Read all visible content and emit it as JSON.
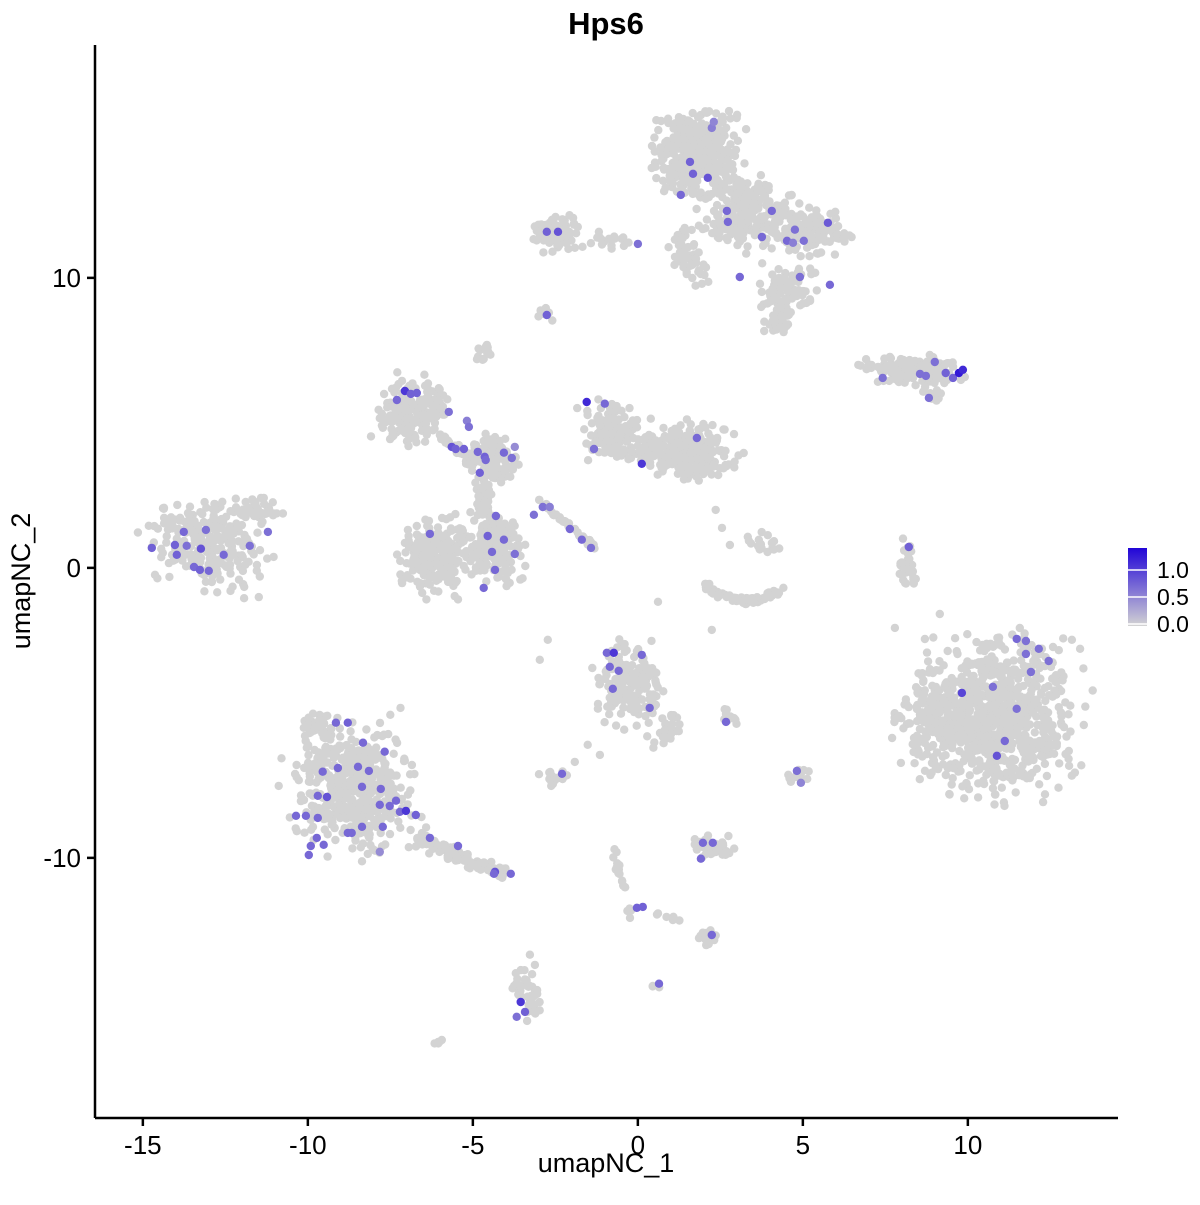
{
  "title": "Hps6",
  "axes": {
    "x": {
      "label": "umapNC_1",
      "ticks": [
        -15,
        -10,
        -5,
        0,
        5,
        10
      ],
      "domain": [
        -16.45,
        14.55
      ]
    },
    "y": {
      "label": "umapNC_2",
      "ticks": [
        -10,
        0,
        10
      ],
      "domain": [
        -18.97,
        18.03
      ]
    }
  },
  "legend": {
    "labels": [
      "1.0",
      "0.5",
      "0.0"
    ],
    "values": [
      1.0,
      0.5,
      0.0
    ],
    "max_expression": 1.45,
    "color_low": "#d3d3d3",
    "color_high": "#2105d7"
  },
  "colors": {
    "background": "#ffffff",
    "point_gray": "#d3d3d3",
    "axis": "#000000"
  },
  "chart_data": {
    "type": "scatter",
    "title": "Hps6",
    "xlabel": "umapNC_1",
    "ylabel": "umapNC_2",
    "xlim": [
      -16.45,
      14.55
    ],
    "ylim": [
      -18.97,
      18.03
    ],
    "grid": false,
    "legend_position": "right",
    "point_radius_px": 4.2,
    "clusters": [
      {
        "t": "blob",
        "cx": 1.88,
        "cy": 14.41,
        "rx": 1.36,
        "ry": 1.62,
        "n": 420
      },
      {
        "t": "blob",
        "cx": 3.33,
        "cy": 12.28,
        "rx": 1.45,
        "ry": 1.28,
        "n": 260,
        "rot": -20
      },
      {
        "t": "blob",
        "cx": 5.15,
        "cy": 11.62,
        "rx": 1.15,
        "ry": 0.9,
        "n": 130,
        "rot": -15
      },
      {
        "t": "blob",
        "cx": 1.58,
        "cy": 10.69,
        "rx": 0.48,
        "ry": 1.14,
        "n": 55,
        "rot": 15
      },
      {
        "t": "blob",
        "cx": 4.55,
        "cy": 9.52,
        "rx": 0.91,
        "ry": 0.88,
        "n": 90
      },
      {
        "t": "blob",
        "cx": 4.36,
        "cy": 8.48,
        "rx": 0.61,
        "ry": 0.41,
        "n": 25,
        "rot": 30
      },
      {
        "t": "blob",
        "cx": 6.27,
        "cy": 11.45,
        "rx": 0.45,
        "ry": 0.34,
        "n": 10
      },
      {
        "t": "blob",
        "cx": -2.45,
        "cy": 11.59,
        "rx": 0.82,
        "ry": 0.71,
        "n": 85
      },
      {
        "t": "blob",
        "cx": -0.85,
        "cy": 11.31,
        "rx": 0.67,
        "ry": 0.33,
        "n": 18
      },
      {
        "t": "blob",
        "cx": -2.82,
        "cy": 8.79,
        "rx": 0.3,
        "ry": 0.24,
        "n": 10,
        "rot": -35
      },
      {
        "t": "blob",
        "cx": -4.7,
        "cy": 7.45,
        "rx": 0.3,
        "ry": 0.38,
        "n": 13
      },
      {
        "t": "blob",
        "cx": -6.85,
        "cy": 5.38,
        "rx": 1.03,
        "ry": 1.21,
        "n": 170,
        "rot": -25
      },
      {
        "t": "line",
        "x1": -6.09,
        "y1": 4.62,
        "x2": -4.91,
        "y2": 3.66,
        "w": 0.14,
        "n": 45
      },
      {
        "t": "blob",
        "cx": -4.42,
        "cy": 3.76,
        "rx": 0.85,
        "ry": 0.88,
        "n": 130
      },
      {
        "t": "blob",
        "cx": -4.67,
        "cy": 2.38,
        "rx": 0.27,
        "ry": 0.81,
        "n": 35
      },
      {
        "t": "blob",
        "cx": -6.12,
        "cy": 0.41,
        "rx": 1.33,
        "ry": 1.48,
        "n": 230
      },
      {
        "t": "blob",
        "cx": -4.27,
        "cy": 0.66,
        "rx": 0.85,
        "ry": 1.34,
        "n": 190,
        "rot": 10
      },
      {
        "t": "line",
        "x1": -3.03,
        "y1": 2.38,
        "x2": -1.27,
        "y2": 0.66,
        "w": 0.09,
        "n": 40
      },
      {
        "t": "blob",
        "cx": -0.79,
        "cy": 4.69,
        "rx": 0.91,
        "ry": 1.14,
        "n": 120,
        "rot": 20
      },
      {
        "t": "blob",
        "cx": 0.36,
        "cy": 4.0,
        "rx": 0.61,
        "ry": 0.6,
        "n": 45
      },
      {
        "t": "blob",
        "cx": 1.64,
        "cy": 4.0,
        "rx": 1.33,
        "ry": 1.07,
        "n": 230
      },
      {
        "t": "arc",
        "cx": 3.24,
        "cy": -0.31,
        "rx": 1.21,
        "ry": 0.83,
        "a1": 195,
        "a2": 345,
        "w": 0.14,
        "n": 85
      },
      {
        "t": "blob",
        "cx": 3.7,
        "cy": 0.9,
        "rx": 0.76,
        "ry": 0.45,
        "n": 18
      },
      {
        "t": "blob",
        "cx": 8.3,
        "cy": 6.83,
        "rx": 1.67,
        "ry": 0.52,
        "n": 150,
        "rot": -5
      },
      {
        "t": "blob",
        "cx": 8.91,
        "cy": 5.93,
        "rx": 0.36,
        "ry": 0.28,
        "n": 10,
        "rot": -40
      },
      {
        "t": "blob",
        "cx": -12.97,
        "cy": 0.93,
        "rx": 1.82,
        "ry": 1.62,
        "n": 260,
        "rot": -10
      },
      {
        "t": "blob",
        "cx": -11.39,
        "cy": 2.0,
        "rx": 0.67,
        "ry": 0.62,
        "n": 35
      },
      {
        "t": "blob",
        "cx": 8.18,
        "cy": 0.21,
        "rx": 0.33,
        "ry": 1.03,
        "n": 32,
        "rot": 8
      },
      {
        "t": "blob",
        "cx": 10.97,
        "cy": -5.14,
        "rx": 2.42,
        "ry": 2.79,
        "n": 850
      },
      {
        "t": "blob",
        "cx": 8.79,
        "cy": -5.1,
        "rx": 1.15,
        "ry": 2.0,
        "n": 120
      },
      {
        "t": "blob",
        "cx": -0.24,
        "cy": -4.07,
        "rx": 1.15,
        "ry": 1.48,
        "n": 170
      },
      {
        "t": "blob",
        "cx": 0.91,
        "cy": -5.69,
        "rx": 0.42,
        "ry": 0.62,
        "n": 25,
        "rot": -30
      },
      {
        "t": "blob",
        "cx": 2.76,
        "cy": -5.14,
        "rx": 0.36,
        "ry": 0.31,
        "n": 12
      },
      {
        "t": "blob",
        "cx": -8.67,
        "cy": -7.59,
        "rx": 1.94,
        "ry": 2.38,
        "n": 470
      },
      {
        "t": "blob",
        "cx": -9.7,
        "cy": -5.45,
        "rx": 0.61,
        "ry": 0.55,
        "n": 45
      },
      {
        "t": "line",
        "x1": -6.76,
        "y1": -9.31,
        "x2": -4.03,
        "y2": -10.62,
        "w": 0.26,
        "n": 110
      },
      {
        "t": "blob",
        "cx": -2.58,
        "cy": -7.21,
        "rx": 0.48,
        "ry": 0.38,
        "n": 20
      },
      {
        "t": "blob",
        "cx": 4.94,
        "cy": -7.21,
        "rx": 0.36,
        "ry": 0.34,
        "n": 14
      },
      {
        "t": "blob",
        "cx": 2.27,
        "cy": -9.66,
        "rx": 0.73,
        "ry": 0.52,
        "n": 40
      },
      {
        "t": "line",
        "x1": -0.79,
        "y1": -9.48,
        "x2": -0.15,
        "y2": -12.38,
        "w": 0.1,
        "n": 22
      },
      {
        "t": "line",
        "x1": 0.52,
        "y1": -11.9,
        "x2": 1.27,
        "y2": -12.17,
        "w": 0.06,
        "n": 7
      },
      {
        "t": "blob",
        "cx": 2.09,
        "cy": -12.76,
        "rx": 0.42,
        "ry": 0.31,
        "n": 16
      },
      {
        "t": "blob",
        "cx": -3.36,
        "cy": -14.69,
        "rx": 0.39,
        "ry": 0.93,
        "n": 42,
        "rot": 15
      },
      {
        "t": "blob",
        "cx": 0.58,
        "cy": -14.41,
        "rx": 0.18,
        "ry": 0.15,
        "n": 3
      },
      {
        "t": "blob",
        "cx": -6.03,
        "cy": -16.38,
        "rx": 0.24,
        "ry": 0.15,
        "n": 5,
        "rot": 35
      },
      {
        "t": "pts",
        "pts": [
          [
            -2.73,
            -2.48
          ],
          [
            0.61,
            -1.17
          ],
          [
            2.24,
            -2.14
          ],
          [
            7.79,
            -2.07
          ],
          [
            9.15,
            -1.59
          ],
          [
            -2.97,
            -3.17
          ],
          [
            -1.15,
            -6.45
          ],
          [
            -1.52,
            -6.1
          ],
          [
            -1.91,
            -6.69
          ],
          [
            -3.27,
            -13.34
          ],
          [
            -3.12,
            -13.69
          ],
          [
            2.55,
            1.38
          ],
          [
            2.36,
            2.0
          ],
          [
            2.79,
            0.79
          ]
        ]
      }
    ],
    "expressing_cells": [
      [
        2.24,
        15.17,
        0.6
      ],
      [
        2.3,
        15.38,
        0.55
      ],
      [
        1.58,
        14.0,
        0.8
      ],
      [
        1.67,
        13.59,
        0.8
      ],
      [
        2.12,
        13.45,
        0.9
      ],
      [
        1.3,
        12.86,
        0.75
      ],
      [
        2.7,
        12.31,
        0.75
      ],
      [
        2.73,
        11.93,
        0.75
      ],
      [
        4.06,
        12.31,
        0.75
      ],
      [
        5.76,
        11.9,
        0.85
      ],
      [
        4.76,
        11.66,
        0.7
      ],
      [
        4.52,
        11.28,
        0.75
      ],
      [
        4.7,
        11.21,
        0.6
      ],
      [
        5.03,
        11.28,
        0.7
      ],
      [
        3.76,
        11.41,
        0.75
      ],
      [
        3.09,
        10.03,
        0.75
      ],
      [
        4.91,
        10.03,
        0.7
      ],
      [
        5.82,
        9.76,
        0.75
      ],
      [
        0.0,
        11.17,
        0.7
      ],
      [
        -2.76,
        11.59,
        0.8
      ],
      [
        -2.42,
        11.59,
        0.9
      ],
      [
        -2.76,
        8.72,
        0.8
      ],
      [
        -7.06,
        6.1,
        1.1
      ],
      [
        -6.88,
        6.0,
        0.8
      ],
      [
        -6.7,
        6.03,
        0.8
      ],
      [
        -7.3,
        5.79,
        0.75
      ],
      [
        -5.73,
        5.38,
        0.7
      ],
      [
        -5.18,
        5.07,
        0.6
      ],
      [
        -5.12,
        4.86,
        0.7
      ],
      [
        -5.64,
        4.17,
        0.9
      ],
      [
        -5.52,
        4.1,
        0.8
      ],
      [
        -5.27,
        4.1,
        0.8
      ],
      [
        -4.85,
        4.0,
        0.75
      ],
      [
        -4.64,
        3.83,
        0.8
      ],
      [
        -4.06,
        3.97,
        0.75
      ],
      [
        -3.82,
        3.79,
        0.7
      ],
      [
        -4.61,
        3.72,
        0.75
      ],
      [
        -4.79,
        3.28,
        0.8
      ],
      [
        -3.73,
        4.17,
        0.5
      ],
      [
        -1.55,
        5.72,
        1.2
      ],
      [
        -1.0,
        5.66,
        0.75
      ],
      [
        -1.33,
        4.1,
        0.7
      ],
      [
        0.12,
        3.59,
        1.1
      ],
      [
        1.79,
        4.48,
        0.75
      ],
      [
        -2.88,
        2.1,
        0.7
      ],
      [
        -2.67,
        2.1,
        0.6
      ],
      [
        -3.15,
        1.83,
        0.7
      ],
      [
        -4.3,
        1.79,
        0.75
      ],
      [
        -6.3,
        1.17,
        0.75
      ],
      [
        -4.55,
        1.1,
        0.8
      ],
      [
        -4.06,
        0.97,
        0.75
      ],
      [
        -2.06,
        1.34,
        0.75
      ],
      [
        -1.7,
        0.97,
        0.75
      ],
      [
        -1.42,
        0.69,
        0.7
      ],
      [
        -4.42,
        0.55,
        0.75
      ],
      [
        -3.73,
        0.48,
        0.7
      ],
      [
        -4.33,
        -0.07,
        0.75
      ],
      [
        -4.67,
        -0.69,
        0.75
      ],
      [
        -14.73,
        0.69,
        0.8
      ],
      [
        -13.76,
        1.24,
        0.75
      ],
      [
        -14.03,
        0.79,
        0.8
      ],
      [
        -13.97,
        0.45,
        0.8
      ],
      [
        -13.67,
        0.76,
        0.7
      ],
      [
        -13.24,
        0.66,
        0.9
      ],
      [
        -13.09,
        1.31,
        0.7
      ],
      [
        -12.55,
        0.45,
        0.75
      ],
      [
        -13.45,
        0.03,
        0.75
      ],
      [
        -13.27,
        -0.07,
        0.8
      ],
      [
        -13.0,
        -0.1,
        0.75
      ],
      [
        -11.76,
        0.76,
        0.7
      ],
      [
        -11.21,
        1.24,
        0.7
      ],
      [
        7.42,
        6.55,
        0.7
      ],
      [
        8.55,
        6.69,
        0.7
      ],
      [
        8.73,
        6.62,
        0.7
      ],
      [
        9.0,
        7.1,
        0.7
      ],
      [
        9.33,
        6.72,
        0.8
      ],
      [
        9.55,
        6.55,
        0.8
      ],
      [
        9.73,
        6.72,
        1.3
      ],
      [
        9.85,
        6.83,
        1.2
      ],
      [
        8.82,
        5.86,
        0.7
      ],
      [
        8.21,
        0.72,
        0.8
      ],
      [
        11.48,
        -2.45,
        0.75
      ],
      [
        11.76,
        -2.52,
        0.7
      ],
      [
        12.15,
        -2.79,
        0.7
      ],
      [
        11.76,
        -2.97,
        0.7
      ],
      [
        12.45,
        -3.21,
        0.7
      ],
      [
        11.91,
        -3.59,
        0.7
      ],
      [
        10.76,
        -4.1,
        0.7
      ],
      [
        9.82,
        -4.31,
        1.0
      ],
      [
        11.48,
        -4.86,
        0.7
      ],
      [
        11.12,
        -5.97,
        0.75
      ],
      [
        10.88,
        -6.48,
        0.9
      ],
      [
        -0.94,
        -2.93,
        0.75
      ],
      [
        -0.73,
        -2.93,
        1.1
      ],
      [
        0.12,
        -3.0,
        0.75
      ],
      [
        -0.85,
        -3.41,
        0.75
      ],
      [
        -0.58,
        -3.55,
        0.75
      ],
      [
        -0.76,
        -4.17,
        0.75
      ],
      [
        0.36,
        -4.83,
        0.75
      ],
      [
        2.67,
        -5.31,
        0.75
      ],
      [
        -2.3,
        -7.1,
        0.75
      ],
      [
        4.82,
        -7.0,
        0.7
      ],
      [
        4.94,
        -7.41,
        0.55
      ],
      [
        -9.15,
        -5.34,
        0.75
      ],
      [
        -8.79,
        -5.34,
        0.8
      ],
      [
        -8.33,
        -6.03,
        0.75
      ],
      [
        -7.67,
        -6.34,
        0.75
      ],
      [
        -9.55,
        -7.03,
        0.75
      ],
      [
        -9.09,
        -6.9,
        0.75
      ],
      [
        -8.48,
        -6.86,
        0.75
      ],
      [
        -8.15,
        -7.0,
        0.75
      ],
      [
        -8.36,
        -7.55,
        0.75
      ],
      [
        -7.79,
        -7.62,
        0.75
      ],
      [
        -9.7,
        -7.86,
        0.75
      ],
      [
        -9.42,
        -7.9,
        0.9
      ],
      [
        -10.36,
        -8.55,
        0.75
      ],
      [
        -10.06,
        -8.55,
        0.75
      ],
      [
        -9.7,
        -8.62,
        0.75
      ],
      [
        -8.79,
        -9.14,
        0.75
      ],
      [
        -8.67,
        -9.14,
        0.75
      ],
      [
        -9.73,
        -9.31,
        0.75
      ],
      [
        -9.52,
        -9.55,
        0.75
      ],
      [
        -9.91,
        -9.59,
        0.75
      ],
      [
        -9.97,
        -9.9,
        0.75
      ],
      [
        -8.36,
        -8.93,
        0.75
      ],
      [
        -7.73,
        -8.93,
        0.75
      ],
      [
        -7.82,
        -9.79,
        0.5
      ],
      [
        -7.33,
        -8.03,
        0.75
      ],
      [
        -7.21,
        -8.41,
        0.75
      ],
      [
        -7.03,
        -8.38,
        1.1
      ],
      [
        -6.73,
        -8.52,
        0.8
      ],
      [
        -6.3,
        -9.31,
        0.75
      ],
      [
        -5.45,
        -9.59,
        0.75
      ],
      [
        -7.82,
        -8.17,
        0.75
      ],
      [
        -7.52,
        -8.21,
        0.75
      ],
      [
        -4.33,
        -10.48,
        0.9
      ],
      [
        -4.36,
        -10.55,
        0.75
      ],
      [
        -3.85,
        -10.55,
        0.75
      ],
      [
        -0.03,
        -11.72,
        0.8
      ],
      [
        0.15,
        -11.69,
        0.8
      ],
      [
        1.97,
        -9.48,
        0.75
      ],
      [
        2.27,
        -9.48,
        0.75
      ],
      [
        1.91,
        -10.03,
        0.75
      ],
      [
        2.24,
        -12.66,
        0.75
      ],
      [
        -3.55,
        -14.97,
        1.1
      ],
      [
        -3.42,
        -15.31,
        0.8
      ],
      [
        -3.67,
        -15.48,
        0.7
      ],
      [
        0.64,
        -14.34,
        0.75
      ]
    ]
  }
}
